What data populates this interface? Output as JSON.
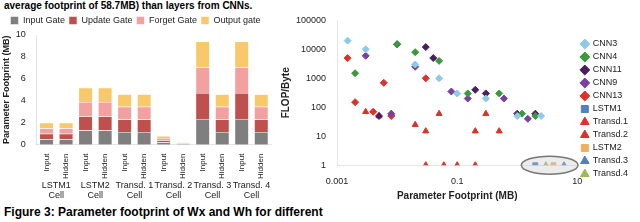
{
  "header": "average footprint of 58.7MB) than layers from CNNs.",
  "caption": "Figure 3: Parameter footprint of Wx and Wh for different",
  "chart_data": [
    {
      "type": "bar",
      "stacked": true,
      "grid": false,
      "legend": "top",
      "y_label": "Parameter Footprint (MB)",
      "categories": [
        "Input",
        "Hidden",
        "Input",
        "Hidden",
        "Input",
        "Hidden",
        "Input",
        "Hidden",
        "Input",
        "Hidden",
        "Input",
        "Hidden"
      ],
      "groups": [
        "LSTM1 Cell",
        "LSTM2 Cell",
        "Transd. 1 Cell",
        "Transd. 2 Cell",
        "Transd. 3 Cell",
        "Transd. 4 Cell"
      ],
      "ylim": [
        0,
        10
      ],
      "yticks": [
        0,
        2,
        4,
        6,
        8,
        10
      ],
      "series": [
        {
          "name": "Input Gate",
          "color": "#7f7f7f",
          "values": [
            0.5,
            0.5,
            1.3,
            1.3,
            1.15,
            1.15,
            0.2,
            0.05,
            2.35,
            1.15,
            2.35,
            1.15
          ]
        },
        {
          "name": "Update Gate",
          "color": "#c0504d",
          "values": [
            0.5,
            0.5,
            1.3,
            1.3,
            1.15,
            1.15,
            0.2,
            0.05,
            2.35,
            1.15,
            2.35,
            1.15
          ]
        },
        {
          "name": "Forget Gate",
          "color": "#f2a0a0",
          "values": [
            0.5,
            0.5,
            1.3,
            1.3,
            1.15,
            1.15,
            0.2,
            0.05,
            2.35,
            1.15,
            2.35,
            1.15
          ]
        },
        {
          "name": "Output gate",
          "color": "#f7c96a",
          "values": [
            0.5,
            0.5,
            1.3,
            1.3,
            1.15,
            1.15,
            0.2,
            0.05,
            2.35,
            1.15,
            2.35,
            1.15
          ]
        }
      ]
    },
    {
      "type": "scatter",
      "log": true,
      "grid": false,
      "legend": "right",
      "x_label": "Parameter Footprint (MB)",
      "y_label": "FLOP/Byte",
      "xlim": [
        0.001,
        10
      ],
      "xticks": [
        0.001,
        0.1,
        10
      ],
      "ylim": [
        1,
        100000
      ],
      "yticks": [
        1,
        10,
        100,
        1000,
        10000,
        100000
      ],
      "series": [
        {
          "name": "CNN3",
          "color": "#8fc9e8",
          "marker": "diamond",
          "x": [
            0.0015,
            0.003,
            0.02,
            0.05,
            0.1,
            0.3,
            1,
            2.5
          ],
          "values": [
            20000,
            10000,
            3000,
            1000,
            300,
            200,
            50,
            50
          ]
        },
        {
          "name": "CNN4",
          "color": "#3a9a3a",
          "marker": "diamond",
          "x": [
            0.002,
            0.01,
            0.02,
            0.05,
            0.15,
            0.5,
            1.2,
            2
          ],
          "values": [
            1500,
            15000,
            8000,
            4000,
            300,
            300,
            60,
            50
          ]
        },
        {
          "name": "CNN11",
          "color": "#4b1f5e",
          "marker": "diamond",
          "x": [
            0.005,
            0.01,
            0.03,
            0.04,
            0.2,
            0.3,
            1,
            2
          ],
          "values": [
            50,
            15000,
            12000,
            5000,
            400,
            300,
            60,
            60
          ]
        },
        {
          "name": "CNN9",
          "color": "#7a3fa0",
          "marker": "diamond",
          "x": [
            0.003,
            0.008,
            0.02,
            0.08,
            0.15,
            0.6,
            1.5
          ],
          "values": [
            6000,
            60,
            2500,
            350,
            200,
            200,
            40
          ]
        },
        {
          "name": "CNN13",
          "color": "#e0302a",
          "marker": "diamond",
          "x": [
            0.0015,
            0.002,
            0.004,
            0.006,
            0.008,
            0.03
          ],
          "values": [
            5000,
            150,
            70,
            700,
            50,
            1000
          ]
        },
        {
          "name": "LSTM1",
          "color": "#4f81bd",
          "marker": "square",
          "x": [
            2
          ],
          "values": [
            1
          ]
        },
        {
          "name": "Transd.1",
          "color": "#e0302a",
          "marker": "triangle",
          "x": [
            0.003,
            0.005,
            0.008,
            0.02,
            0.03,
            0.05,
            0.2,
            0.3,
            0.5
          ],
          "values": [
            70,
            50,
            60,
            25,
            15,
            60,
            15,
            60,
            15
          ]
        },
        {
          "name": "Transd.2",
          "color": "#e0302a",
          "marker": "triangle",
          "x": [
            0.03,
            0.06,
            0.1,
            0.2
          ],
          "values": [
            1,
            1,
            1,
            1
          ]
        },
        {
          "name": "LSTM2",
          "color": "#f0b060",
          "marker": "square",
          "x": [
            4
          ],
          "values": [
            1
          ]
        },
        {
          "name": "Transd.3",
          "color": "#4f81bd",
          "marker": "triangle",
          "x": [
            6
          ],
          "values": [
            1
          ]
        },
        {
          "name": "Transd.4",
          "color": "#9bbb59",
          "marker": "triangle",
          "x": [
            3
          ],
          "values": [
            1
          ]
        }
      ]
    }
  ]
}
